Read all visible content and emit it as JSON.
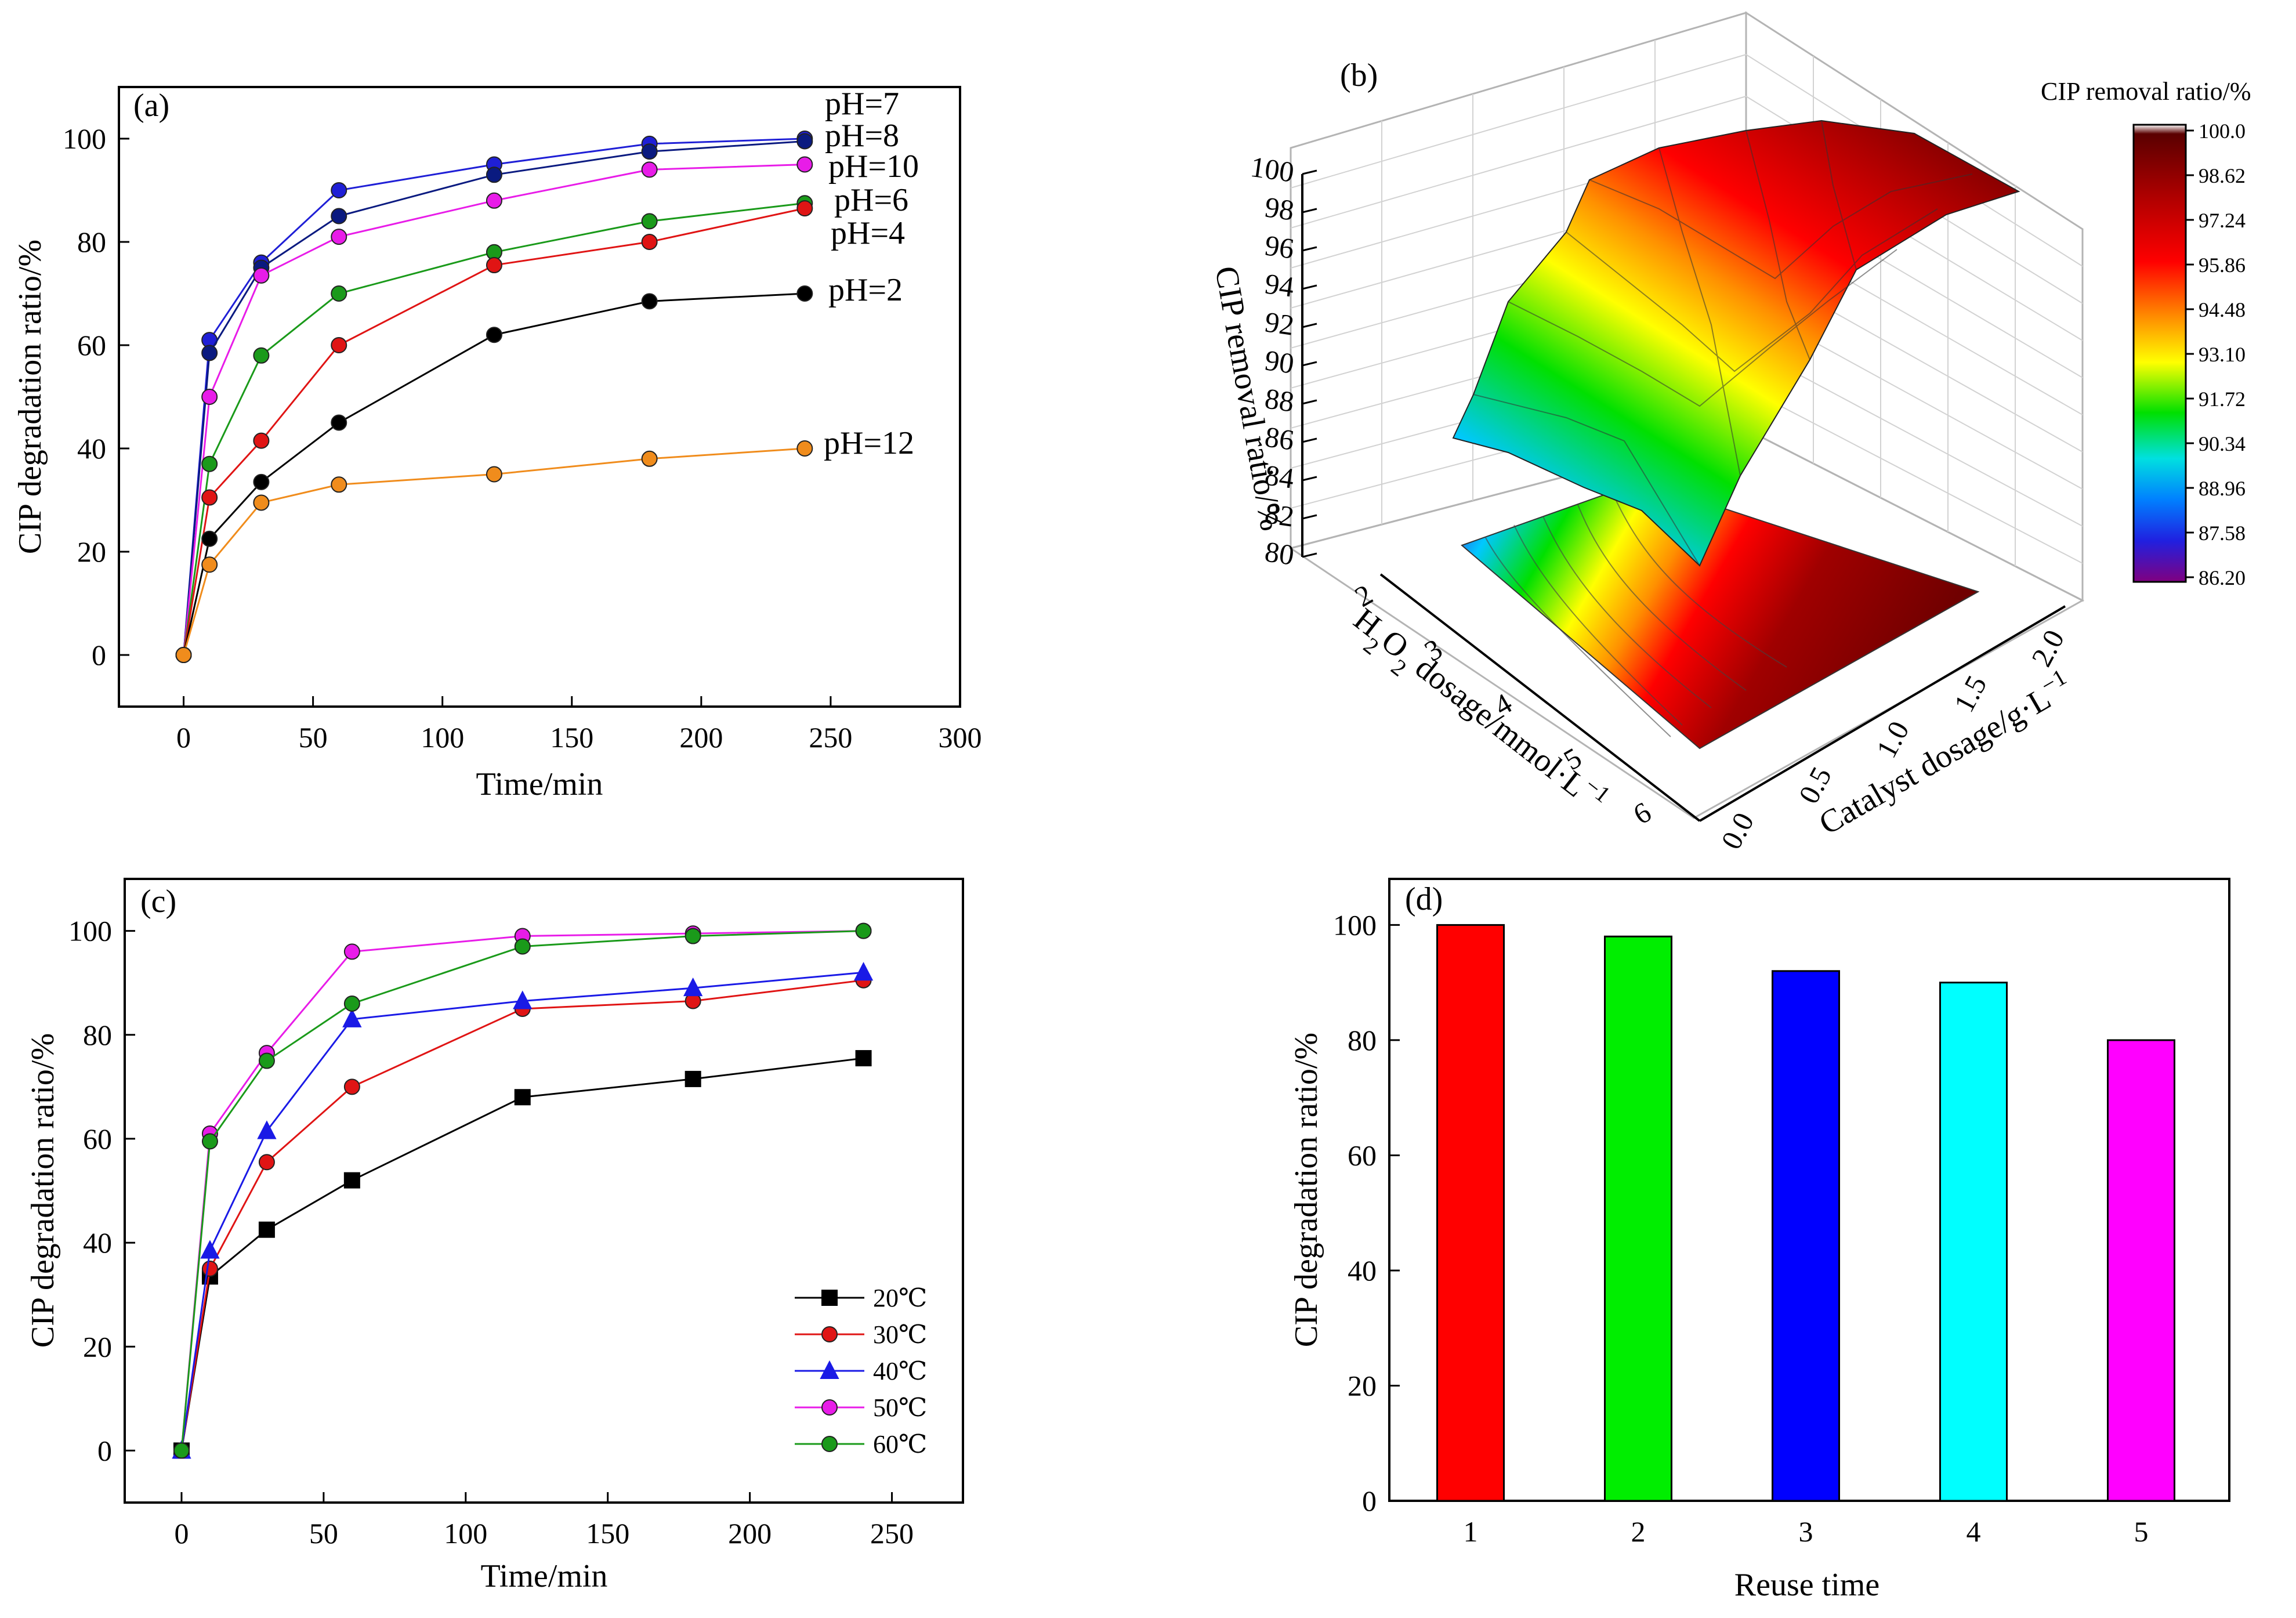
{
  "chart_data": [
    {
      "panel": "(a)",
      "type": "line",
      "xlabel": "Time/min",
      "ylabel": "CIP degradation ratio/%",
      "xlim": [
        -25,
        300
      ],
      "ylim": [
        -10,
        110
      ],
      "xticks": [
        0,
        50,
        100,
        150,
        200,
        250,
        300
      ],
      "yticks": [
        0,
        20,
        40,
        60,
        80,
        100
      ],
      "x": [
        0,
        10,
        30,
        60,
        120,
        180,
        240
      ],
      "series": [
        {
          "name": "pH=7",
          "color": "#1f1fd6",
          "values": [
            0,
            61,
            76,
            90,
            95,
            99,
            100
          ]
        },
        {
          "name": "pH=8",
          "color": "#0a1a80",
          "values": [
            0,
            58.5,
            75,
            85,
            93,
            97.5,
            99.5
          ]
        },
        {
          "name": "pH=10",
          "color": "#e81ce8",
          "values": [
            0,
            50,
            73.5,
            81,
            88,
            94,
            95
          ]
        },
        {
          "name": "pH=6",
          "color": "#1a9a1a",
          "values": [
            0,
            37,
            58,
            70,
            78,
            84,
            87.5
          ]
        },
        {
          "name": "pH=4",
          "color": "#e01414",
          "values": [
            0,
            30.5,
            41.5,
            60,
            75.5,
            80,
            86.5
          ]
        },
        {
          "name": "pH=2",
          "color": "#000000",
          "values": [
            0,
            22.5,
            33.5,
            45,
            62,
            68.5,
            70
          ]
        },
        {
          "name": "pH=12",
          "color": "#f08c1c",
          "values": [
            0,
            17.5,
            29.5,
            33,
            35,
            38,
            40
          ]
        }
      ]
    },
    {
      "panel": "(b)",
      "type": "surface3d",
      "zlabel": "CIP removal ratio/%",
      "xlabel_base": "H",
      "xlabel_sub1": "2",
      "xlabel_mid": "O",
      "xlabel_sub2": "2",
      "xlabel_rest": " dosage/mmol·L",
      "xlabel_sup": "−1",
      "ylabel_base": "Catalyst dosage/g·L",
      "ylabel_sup": "−1",
      "zlim": [
        80,
        100
      ],
      "zticks": [
        "80",
        "82",
        "84",
        "86",
        "88",
        "90",
        "92",
        "94",
        "96",
        "98",
        "100"
      ],
      "xticks": [
        "2",
        "3",
        "4",
        "5",
        "6"
      ],
      "yticks": [
        "0.0",
        "0.5",
        "1.0",
        "1.5",
        "2.0"
      ],
      "colorbar_title": "CIP removal ratio/%",
      "colorbar_ticks": [
        "100.0",
        "98.62",
        "97.24",
        "95.86",
        "94.48",
        "93.10",
        "91.72",
        "90.34",
        "88.96",
        "87.58",
        "86.20"
      ]
    },
    {
      "panel": "(c)",
      "type": "line",
      "xlabel": "Time/min",
      "ylabel": "CIP degradation ratio/%",
      "xlim": [
        -20,
        275
      ],
      "ylim": [
        -10,
        110
      ],
      "xticks": [
        0,
        50,
        100,
        150,
        200,
        250
      ],
      "yticks": [
        0,
        20,
        40,
        60,
        80,
        100
      ],
      "x": [
        0,
        10,
        30,
        60,
        120,
        180,
        240
      ],
      "series": [
        {
          "name": "20℃",
          "color": "#000000",
          "marker": "square",
          "values": [
            0,
            33.5,
            42.5,
            52,
            68,
            71.5,
            75.5
          ]
        },
        {
          "name": "30℃",
          "color": "#e01414",
          "marker": "circle",
          "values": [
            0,
            35,
            55.5,
            70,
            85,
            86.5,
            90.5
          ]
        },
        {
          "name": "40℃",
          "color": "#1a1ae6",
          "marker": "triangle",
          "values": [
            0,
            38.5,
            61.5,
            83,
            86.5,
            89,
            92
          ]
        },
        {
          "name": "50℃",
          "color": "#e81ce8",
          "marker": "circle",
          "values": [
            0,
            61,
            76.5,
            96,
            99,
            99.5,
            100
          ]
        },
        {
          "name": "60℃",
          "color": "#1a9a1a",
          "marker": "circle",
          "values": [
            0,
            59.5,
            75,
            86,
            97,
            99,
            100
          ]
        }
      ]
    },
    {
      "panel": "(d)",
      "type": "bar",
      "xlabel": "Reuse time",
      "ylabel": "CIP degradation ratio/%",
      "ylim": [
        0,
        108
      ],
      "yticks": [
        0,
        20,
        40,
        60,
        80,
        100
      ],
      "categories": [
        "1",
        "2",
        "3",
        "4",
        "5"
      ],
      "values": [
        100,
        98,
        92,
        90,
        80
      ],
      "colors": [
        "#ff0000",
        "#00ee00",
        "#0000ff",
        "#00ffff",
        "#ff00ff"
      ]
    }
  ]
}
